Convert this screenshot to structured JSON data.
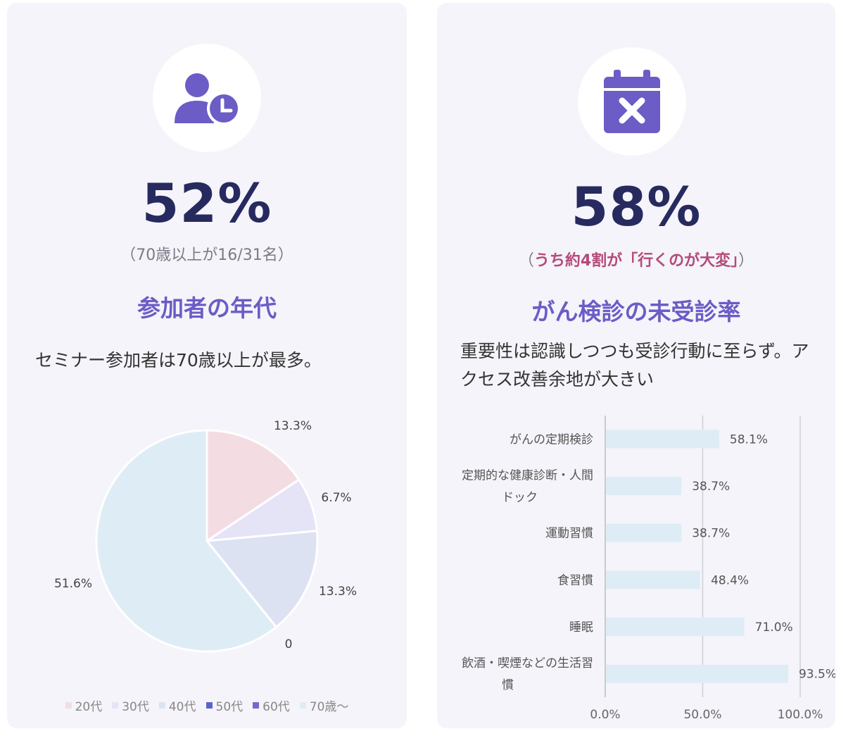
{
  "left_card": {
    "icon": "user-clock-icon",
    "stat": "52%",
    "note": "（70歳以上が16/31名）",
    "title": "参加者の年代",
    "description": "セミナー参加者は70歳以上が最多。"
  },
  "right_card": {
    "icon": "calendar-x-icon",
    "stat": "58%",
    "note_open": "（",
    "note_main": "うち約4割が「行くのが大変」",
    "note_close": "）",
    "title": "がん検診の未受診率",
    "description": "重要性は認識しつつも受診行動に至らず。アクセス改善余地が大きい"
  },
  "colors": {
    "accent": "#6b5cc6",
    "stat": "#262a5e",
    "highlight": "#b54a7a",
    "card_bg": "#f4f4fa",
    "bar": "#deedf5"
  },
  "chart_data": [
    {
      "type": "pie",
      "slices": [
        {
          "name": "20代",
          "value": 13.3,
          "label": "13.3%",
          "color": "#f3dde3"
        },
        {
          "name": "30代",
          "value": 6.7,
          "label": "6.7%",
          "color": "#e5e3f6"
        },
        {
          "name": "40代",
          "value": 13.3,
          "label": "13.3%",
          "color": "#dde2f3"
        },
        {
          "name": "50代",
          "value": 0,
          "label": "0",
          "color": "#5a64c8"
        },
        {
          "name": "60代",
          "value": 0,
          "label": "",
          "color": "#7a66cc"
        },
        {
          "name": "70歳〜",
          "value": 51.6,
          "label": "51.6%",
          "color": "#deedf5"
        }
      ],
      "legend": [
        "20代",
        "30代",
        "40代",
        "50代",
        "60代",
        "70歳〜"
      ],
      "legend_position": "bottom"
    },
    {
      "type": "bar",
      "orientation": "horizontal",
      "categories": [
        [
          "がんの定期検診"
        ],
        [
          "定期的な健康診断・人間",
          "ドック"
        ],
        [
          "運動習慣"
        ],
        [
          "食習慣"
        ],
        [
          "睡眠"
        ],
        [
          "飲酒・喫煙などの生活習",
          "慣"
        ]
      ],
      "values": [
        58.1,
        38.7,
        38.7,
        48.4,
        71.0,
        93.5
      ],
      "value_labels": [
        "58.1%",
        "38.7%",
        "38.7%",
        "48.4%",
        "71.0%",
        "93.5%"
      ],
      "xlim": [
        0,
        100
      ],
      "x_ticks": [
        "0.0%",
        "50.0%",
        "100.0%"
      ],
      "grid": true
    }
  ]
}
